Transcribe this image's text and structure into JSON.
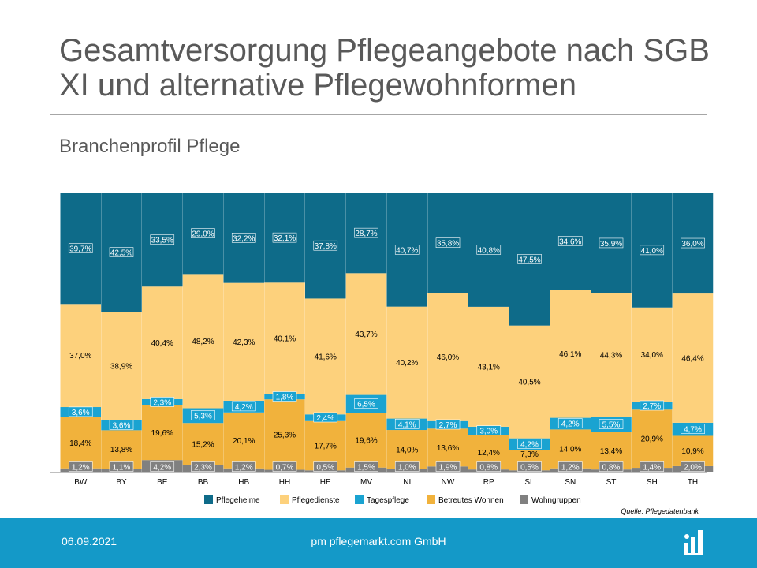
{
  "title": "Gesamtversorgung Pflegeangebote nach SGB XI und alternative Pflegewohnformen",
  "subtitle": "Branchenprofil Pflege",
  "source": "Quelle: Pflegedatenbank",
  "footer": {
    "date": "06.09.2021",
    "company": "pm pflegemarkt.com GmbH",
    "logo_icon": "pflegemarkt-logo-icon"
  },
  "colors": {
    "Pflegeheime": "#0e6b89",
    "Pflegedienste": "#fdd17c",
    "Tagespflege": "#1aa3d1",
    "Betreutes Wohnen": "#f1b23c",
    "Wohngruppen": "#808080",
    "footer": "#1499c8"
  },
  "chart_data": {
    "type": "bar",
    "stacked": true,
    "normalized": true,
    "title": "Gesamtversorgung Pflegeangebote nach SGB XI und alternative Pflegewohnformen",
    "categories": [
      "BW",
      "BY",
      "BE",
      "BB",
      "HB",
      "HH",
      "HE",
      "MV",
      "NI",
      "NW",
      "RP",
      "SL",
      "SN",
      "ST",
      "SH",
      "TH"
    ],
    "series": [
      {
        "name": "Wohngruppen",
        "values": [
          1.2,
          1.1,
          4.2,
          2.3,
          1.2,
          0.7,
          0.5,
          1.5,
          1.0,
          1.9,
          0.8,
          0.5,
          1.2,
          0.8,
          1.4,
          2.0
        ],
        "labels": [
          "1,2%",
          "1,1%",
          "4,2%",
          "2,3%",
          "1,2%",
          "0,7%",
          "0,5%",
          "1,5%",
          "1,0%",
          "1,9%",
          "0,8%",
          "0,5%",
          "1,2%",
          "0,8%",
          "1,4%",
          "2,0%"
        ]
      },
      {
        "name": "Betreutes Wohnen",
        "values": [
          18.4,
          13.8,
          19.6,
          15.2,
          20.1,
          25.3,
          17.7,
          19.6,
          14.0,
          13.6,
          12.4,
          7.3,
          14.0,
          13.4,
          20.9,
          10.9
        ],
        "labels": [
          "18,4%",
          "13,8%",
          "19,6%",
          "15,2%",
          "20,1%",
          "25,3%",
          "17,7%",
          "19,6%",
          "14,0%",
          "13,6%",
          "12,4%",
          "7,3%",
          "14,0%",
          "13,4%",
          "20,9%",
          "10,9%"
        ]
      },
      {
        "name": "Tagespflege",
        "values": [
          3.6,
          3.6,
          2.3,
          5.3,
          4.2,
          1.8,
          2.4,
          6.5,
          4.1,
          2.7,
          3.0,
          4.2,
          4.2,
          5.5,
          2.7,
          4.7
        ],
        "labels": [
          "3,6%",
          "3,6%",
          "2,3%",
          "5,3%",
          "4,2%",
          "1,8%",
          "2,4%",
          "6,5%",
          "4,1%",
          "2,7%",
          "3,0%",
          "4,2%",
          "4,2%",
          "5,5%",
          "2,7%",
          "4,7%"
        ]
      },
      {
        "name": "Pflegedienste",
        "values": [
          37.0,
          38.9,
          40.4,
          48.2,
          42.3,
          40.1,
          41.6,
          43.7,
          40.2,
          46.0,
          43.1,
          40.5,
          46.1,
          44.3,
          34.0,
          46.4
        ],
        "labels": [
          "37,0%",
          "38,9%",
          "40,4%",
          "48,2%",
          "42,3%",
          "40,1%",
          "41,6%",
          "43,7%",
          "40,2%",
          "46,0%",
          "43,1%",
          "40,5%",
          "46,1%",
          "44,3%",
          "34,0%",
          "46,4%"
        ]
      },
      {
        "name": "Pflegeheime",
        "values": [
          39.7,
          42.5,
          33.5,
          29.0,
          32.2,
          32.1,
          37.8,
          28.7,
          40.7,
          35.8,
          40.8,
          47.5,
          34.6,
          35.9,
          41.0,
          36.0
        ],
        "labels": [
          "39,7%",
          "42,5%",
          "33,5%",
          "29,0%",
          "32,2%",
          "32,1%",
          "37,8%",
          "28,7%",
          "40,7%",
          "35,8%",
          "40,8%",
          "47,5%",
          "34,6%",
          "35,9%",
          "41,0%",
          "36,0%"
        ]
      }
    ],
    "legend": [
      "Pflegeheime",
      "Pflegedienste",
      "Tagespflege",
      "Betreutes Wohnen",
      "Wohngruppen"
    ],
    "legend_position": "bottom",
    "xlabel": "",
    "ylabel": "",
    "ylim": [
      0,
      100
    ]
  }
}
